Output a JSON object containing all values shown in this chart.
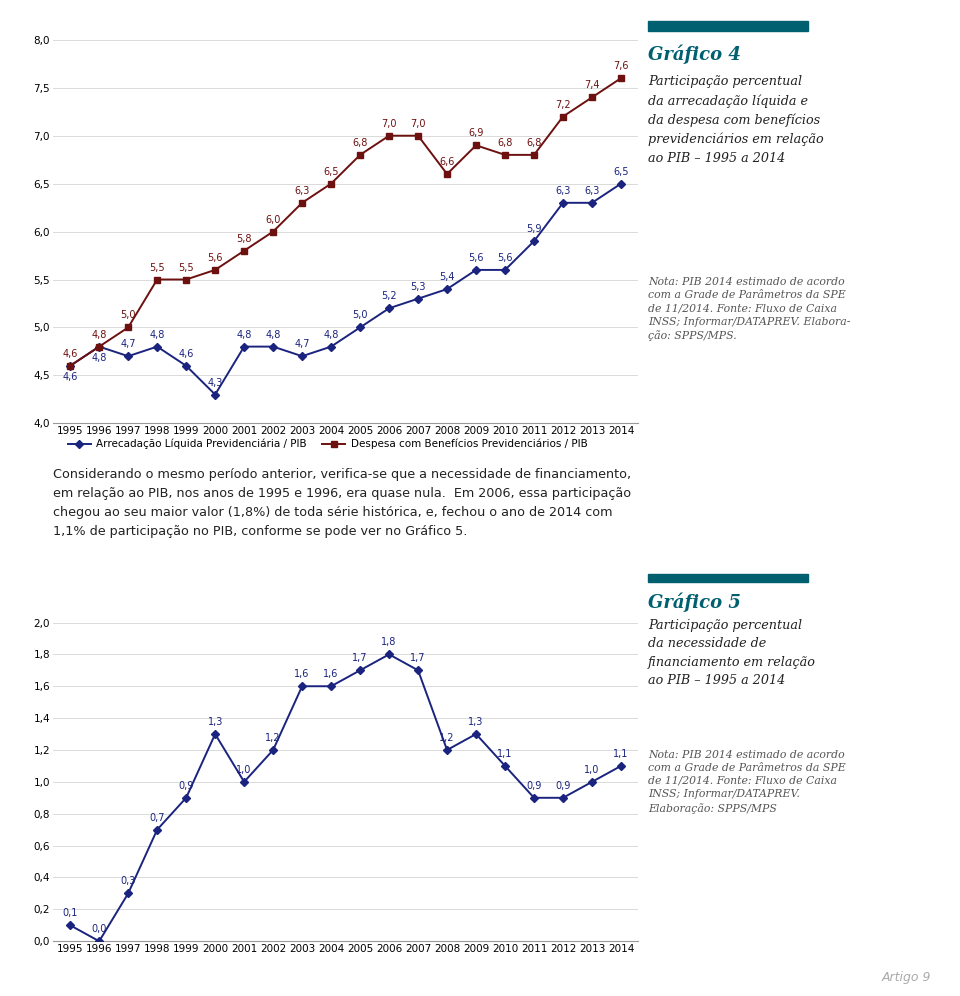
{
  "years": [
    1995,
    1996,
    1997,
    1998,
    1999,
    2000,
    2001,
    2002,
    2003,
    2004,
    2005,
    2006,
    2007,
    2008,
    2009,
    2010,
    2011,
    2012,
    2013,
    2014
  ],
  "arrecadacao": [
    4.6,
    4.8,
    4.7,
    4.8,
    4.6,
    4.3,
    4.8,
    4.8,
    4.7,
    4.8,
    5.0,
    5.2,
    5.3,
    5.4,
    5.6,
    5.6,
    5.9,
    6.3,
    6.3,
    6.5
  ],
  "despesa": [
    4.6,
    4.8,
    5.0,
    5.5,
    5.5,
    5.6,
    5.8,
    6.0,
    6.3,
    6.5,
    6.8,
    7.0,
    7.0,
    6.6,
    6.9,
    6.8,
    6.8,
    7.2,
    7.4,
    7.6
  ],
  "necessidade": [
    0.1,
    0.0,
    0.3,
    0.7,
    0.9,
    1.3,
    1.0,
    1.2,
    1.6,
    1.6,
    1.7,
    1.8,
    1.7,
    1.2,
    1.3,
    1.1,
    0.9,
    0.9,
    1.0,
    1.1
  ],
  "arrecadacao_color": "#1a237e",
  "despesa_color": "#6d1010",
  "necessidade_color": "#1a237e",
  "chart1_ylim": [
    4.0,
    8.0
  ],
  "chart1_yticks": [
    4.0,
    4.5,
    5.0,
    5.5,
    6.0,
    6.5,
    7.0,
    7.5,
    8.0
  ],
  "chart2_ylim": [
    0.0,
    2.0
  ],
  "chart2_yticks": [
    0.0,
    0.2,
    0.4,
    0.6,
    0.8,
    1.0,
    1.2,
    1.4,
    1.6,
    1.8,
    2.0
  ],
  "grafico4_title": "Gráfico 4",
  "grafico4_subtitle": "Participação percentual\nda arrecadação líquida e\nda despesa com benefícios\nprevidenciários em relação\nao PIB – 1995 a 2014",
  "grafico4_nota": "Nota: PIB 2014 estimado de acordo\ncom a Grade de Parâmetros da SPE\nde 11/2014. Fonte: Fluxo de Caixa\nINSS; Informar/DATAPREV. Elabora-\nção: SPPS/MPS.",
  "grafico5_title": "Gráfico 5",
  "grafico5_subtitle": "Participação percentual\nda necessidade de\nfinanciamento em relação\nao PIB – 1995 a 2014",
  "grafico5_nota": "Nota: PIB 2014 estimado de acordo\ncom a Grade de Parâmetros da SPE\nde 11/2014. Fonte: Fluxo de Caixa\nINSS; Informar/DATAPREV.\nElaboração: SPPS/MPS",
  "legend1_arrecadacao": "Arrecadação Líquida Previdenciária / PIB",
  "legend1_despesa": "Despesa com Benefícios Previdenciários / PIB",
  "middle_text": "Considerando o mesmo período anterior, verifica-se que a necessidade de financiamento,\nem relação ao PIB, nos anos de 1995 e 1996, era quase nula.  Em 2006, essa participação\nchegou ao seu maior valor (1,8%) de toda série histórica, e, fechou o ano de 2014 com\n1,1% de participação no PIB, conforme se pode ver no Gráfico 5.",
  "page_text": "Artigo 9",
  "teal_color": "#006070",
  "bg_color": "#ffffff",
  "label_fontsize": 7.0,
  "tick_fontsize": 7.5,
  "marker_size": 4
}
